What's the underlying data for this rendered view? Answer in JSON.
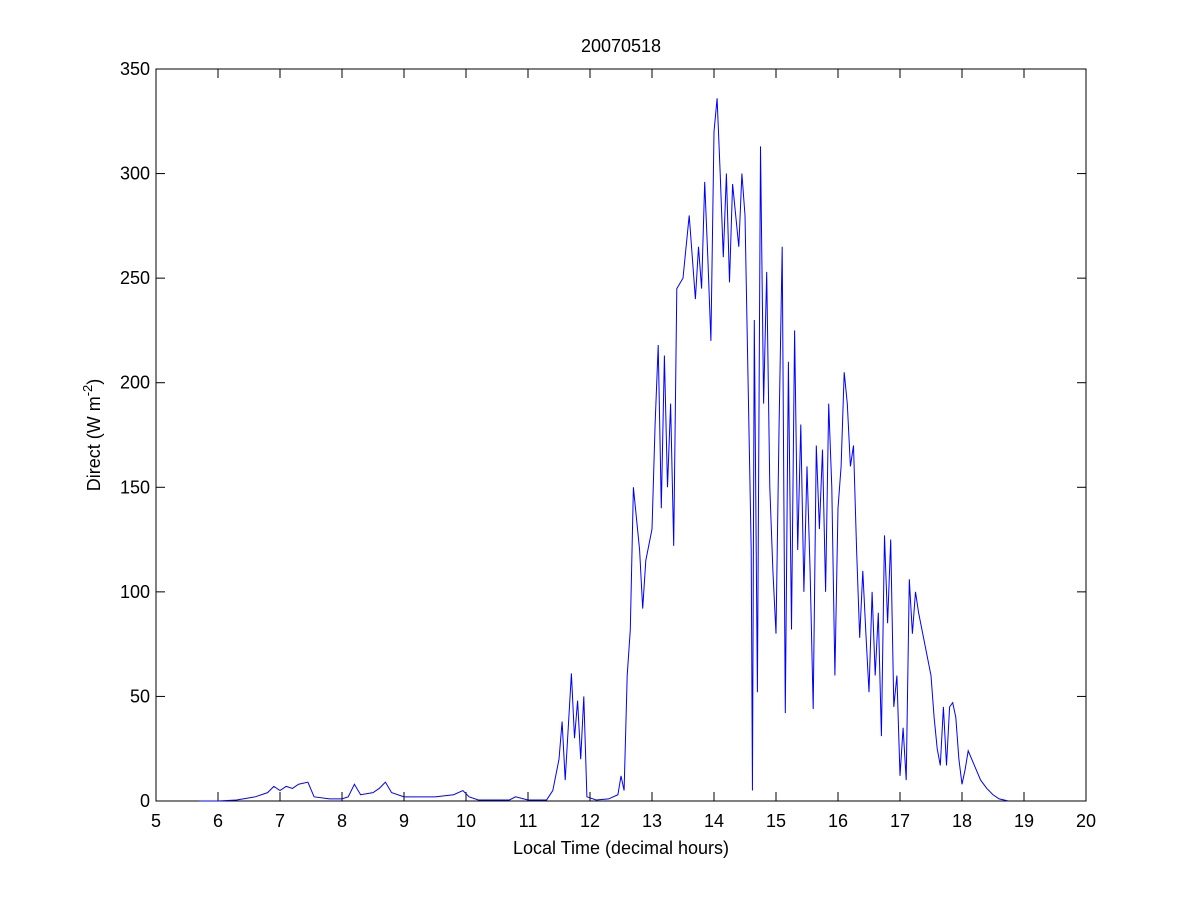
{
  "chart_data": {
    "type": "line",
    "title": "20070518",
    "xlabel": "Local Time (decimal hours)",
    "ylabel": {
      "text": "Direct (W m",
      "superscript": "-2",
      "end": ")"
    },
    "xlim": [
      5,
      20
    ],
    "xticks": [
      5,
      6,
      7,
      8,
      9,
      10,
      11,
      12,
      13,
      14,
      15,
      16,
      17,
      18,
      19,
      20
    ],
    "ylim": [
      0,
      350
    ],
    "yticks": [
      0,
      50,
      100,
      150,
      200,
      250,
      300,
      350
    ],
    "grid": false,
    "series": [
      {
        "color": "#0000ff",
        "x": [
          5.7,
          6.0,
          6.3,
          6.6,
          6.8,
          6.9,
          7.0,
          7.1,
          7.2,
          7.3,
          7.45,
          7.55,
          7.8,
          8.0,
          8.1,
          8.2,
          8.3,
          8.5,
          8.6,
          8.7,
          8.8,
          9.0,
          9.5,
          9.8,
          9.95,
          10.05,
          10.2,
          10.7,
          10.8,
          11.0,
          11.3,
          11.4,
          11.5,
          11.55,
          11.6,
          11.7,
          11.75,
          11.8,
          11.85,
          11.9,
          11.95,
          12.1,
          12.3,
          12.45,
          12.5,
          12.55,
          12.6,
          12.65,
          12.7,
          12.8,
          12.85,
          12.9,
          13.0,
          13.05,
          13.1,
          13.15,
          13.2,
          13.25,
          13.3,
          13.35,
          13.4,
          13.5,
          13.6,
          13.7,
          13.75,
          13.8,
          13.85,
          13.9,
          13.95,
          14.0,
          14.05,
          14.1,
          14.15,
          14.2,
          14.25,
          14.3,
          14.35,
          14.4,
          14.45,
          14.5,
          14.55,
          14.6,
          14.62,
          14.65,
          14.7,
          14.75,
          14.8,
          14.85,
          14.9,
          14.95,
          15.0,
          15.05,
          15.1,
          15.15,
          15.2,
          15.25,
          15.3,
          15.35,
          15.4,
          15.45,
          15.5,
          15.55,
          15.6,
          15.65,
          15.7,
          15.75,
          15.8,
          15.85,
          15.9,
          15.95,
          16.0,
          16.05,
          16.1,
          16.15,
          16.2,
          16.25,
          16.3,
          16.35,
          16.4,
          16.45,
          16.5,
          16.55,
          16.6,
          16.65,
          16.7,
          16.75,
          16.8,
          16.85,
          16.9,
          16.95,
          17.0,
          17.05,
          17.1,
          17.15,
          17.2,
          17.25,
          17.3,
          17.4,
          17.5,
          17.55,
          17.6,
          17.65,
          17.7,
          17.75,
          17.8,
          17.85,
          17.9,
          17.95,
          18.0,
          18.05,
          18.1,
          18.2,
          18.3,
          18.4,
          18.5,
          18.6,
          18.75
        ],
        "values": [
          0,
          0,
          0.5,
          2,
          4,
          7,
          5,
          7,
          6,
          8,
          9,
          2,
          1,
          1,
          2,
          8,
          3,
          4,
          6,
          9,
          4,
          2,
          2,
          3,
          5,
          2,
          0.5,
          0.5,
          2,
          0.5,
          0.5,
          5,
          20,
          38,
          10,
          61,
          30,
          48,
          20,
          50,
          2,
          0.5,
          1,
          3,
          12,
          5,
          60,
          82,
          150,
          120,
          92,
          115,
          130,
          180,
          218,
          140,
          213,
          150,
          190,
          122,
          245,
          250,
          280,
          240,
          265,
          245,
          296,
          260,
          220,
          320,
          336,
          300,
          260,
          300,
          248,
          295,
          280,
          265,
          300,
          280,
          200,
          120,
          5,
          230,
          52,
          313,
          190,
          253,
          150,
          110,
          80,
          180,
          265,
          42,
          210,
          82,
          225,
          120,
          180,
          100,
          160,
          110,
          44,
          170,
          130,
          168,
          100,
          190,
          150,
          60,
          140,
          160,
          205,
          190,
          160,
          170,
          120,
          78,
          110,
          80,
          52,
          100,
          60,
          90,
          31,
          127,
          85,
          125,
          45,
          60,
          12,
          35,
          10,
          106,
          80,
          100,
          90,
          75,
          60,
          40,
          25,
          17,
          45,
          17,
          45,
          47,
          40,
          20,
          8,
          15,
          24,
          17,
          10,
          6,
          3,
          1,
          0
        ]
      }
    ]
  }
}
